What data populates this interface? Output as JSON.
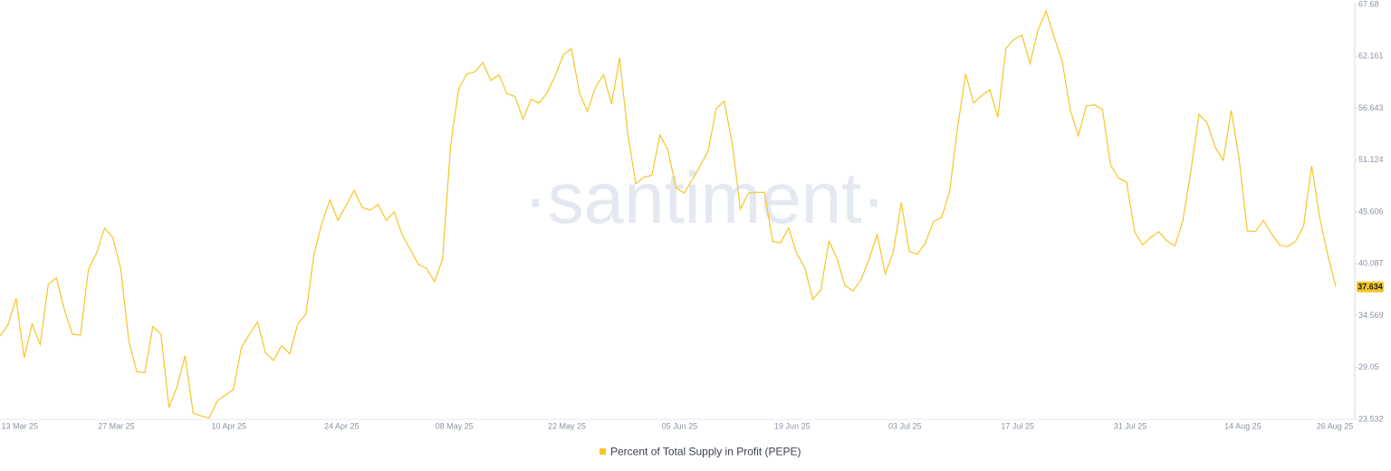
{
  "chart_data": {
    "type": "line",
    "watermark": "·santiment·",
    "categories": [
      null,
      null,
      "13 Mar 25",
      null,
      null,
      null,
      null,
      null,
      null,
      null,
      null,
      null,
      null,
      null,
      "27 Mar 25",
      null,
      null,
      null,
      null,
      null,
      null,
      null,
      null,
      null,
      null,
      null,
      null,
      null,
      "10 Apr 25",
      null,
      null,
      null,
      null,
      null,
      null,
      null,
      null,
      null,
      null,
      null,
      null,
      null,
      "24 Apr 25",
      null,
      null,
      null,
      null,
      null,
      null,
      null,
      null,
      null,
      null,
      null,
      null,
      null,
      "08 May 25",
      null,
      null,
      null,
      null,
      null,
      null,
      null,
      null,
      null,
      null,
      null,
      null,
      null,
      "22 May 25",
      null,
      null,
      null,
      null,
      null,
      null,
      null,
      null,
      null,
      null,
      null,
      null,
      null,
      "05 Jun 25",
      null,
      null,
      null,
      null,
      null,
      null,
      null,
      null,
      null,
      null,
      null,
      null,
      null,
      "19 Jun 25",
      null,
      null,
      null,
      null,
      null,
      null,
      null,
      null,
      null,
      null,
      null,
      null,
      null,
      "03 Jul 25",
      null,
      null,
      null,
      null,
      null,
      null,
      null,
      null,
      null,
      null,
      null,
      null,
      null,
      "17 Jul 25",
      null,
      null,
      null,
      null,
      null,
      null,
      null,
      null,
      null,
      null,
      null,
      null,
      null,
      "31 Jul 25",
      null,
      null,
      null,
      null,
      null,
      null,
      null,
      null,
      null,
      null,
      null,
      null,
      null,
      "14 Aug 25",
      null,
      null,
      null,
      null,
      null,
      null,
      null,
      null,
      null,
      null,
      null,
      null,
      null,
      "26 Aug 25"
    ],
    "series": [
      {
        "name": "Percent of Total Supply in Profit (PEPE)",
        "color": "#f5c629",
        "values": [
          32.4,
          33.6,
          36.4,
          30.1,
          33.7,
          31.5,
          37.9,
          38.6,
          35.2,
          32.6,
          32.5,
          39.5,
          41.2,
          43.9,
          42.9,
          39.6,
          31.9,
          28.6,
          28.5,
          33.4,
          32.6,
          24.8,
          27.0,
          30.3,
          24.2,
          23.9,
          23.7,
          25.5,
          26.1,
          26.7,
          31.2,
          32.6,
          33.9,
          30.6,
          29.8,
          31.4,
          30.5,
          33.7,
          34.7,
          41.0,
          44.4,
          46.9,
          44.7,
          46.3,
          47.9,
          46.1,
          45.8,
          46.4,
          44.7,
          45.6,
          43.1,
          41.6,
          40.0,
          39.6,
          38.2,
          40.6,
          52.7,
          58.7,
          60.3,
          60.5,
          61.5,
          59.6,
          60.2,
          58.2,
          57.9,
          55.5,
          57.6,
          57.2,
          58.3,
          60.1,
          62.3,
          63.0,
          58.3,
          56.3,
          58.9,
          60.2,
          57.1,
          62.0,
          54.0,
          48.6,
          49.3,
          49.5,
          53.8,
          52.2,
          48.2,
          47.6,
          49.0,
          50.5,
          52.1,
          56.6,
          57.4,
          52.9,
          45.9,
          47.6,
          47.7,
          47.7,
          42.5,
          42.3,
          43.9,
          41.2,
          39.7,
          36.3,
          37.3,
          42.5,
          40.7,
          37.8,
          37.2,
          38.4,
          40.6,
          43.2,
          39.0,
          41.3,
          46.6,
          41.4,
          41.1,
          42.3,
          44.6,
          45.0,
          47.7,
          54.6,
          60.3,
          57.2,
          58.0,
          58.6,
          55.7,
          63.0,
          64.0,
          64.4,
          61.4,
          65.0,
          67.0,
          64.2,
          61.6,
          56.5,
          53.7,
          56.9,
          57.0,
          56.5,
          50.6,
          49.2,
          48.8,
          43.5,
          42.1,
          42.9,
          43.5,
          42.5,
          42.0,
          44.7,
          50.0,
          56.0,
          55.1,
          52.5,
          51.1,
          56.4,
          51.2,
          43.6,
          43.5,
          44.7,
          43.3,
          42.1,
          41.9,
          42.5,
          44.1,
          50.5,
          45.0,
          41.0,
          37.634,
          null,
          null
        ]
      }
    ],
    "ylim": [
      23.532,
      67.68
    ],
    "yticks": [
      23.532,
      29.05,
      34.569,
      40.087,
      45.606,
      51.124,
      56.643,
      62.161,
      67.68
    ],
    "y_axis_side": "right",
    "grid": false
  }
}
